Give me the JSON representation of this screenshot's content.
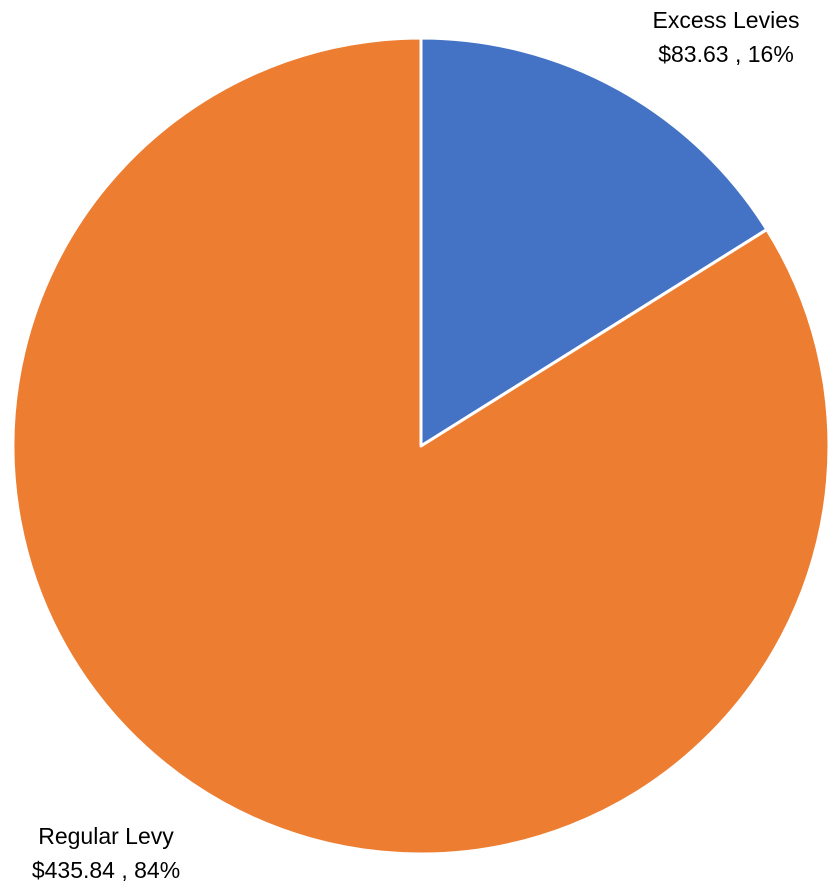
{
  "chart_data": {
    "type": "pie",
    "categories": [
      "Excess Levies",
      "Regular Levy"
    ],
    "values": [
      83.63,
      435.84
    ],
    "value_labels": [
      "$83.63 , 16%",
      "$435.84 , 84%"
    ],
    "colors": [
      "#4472c4",
      "#ed7d31"
    ]
  }
}
